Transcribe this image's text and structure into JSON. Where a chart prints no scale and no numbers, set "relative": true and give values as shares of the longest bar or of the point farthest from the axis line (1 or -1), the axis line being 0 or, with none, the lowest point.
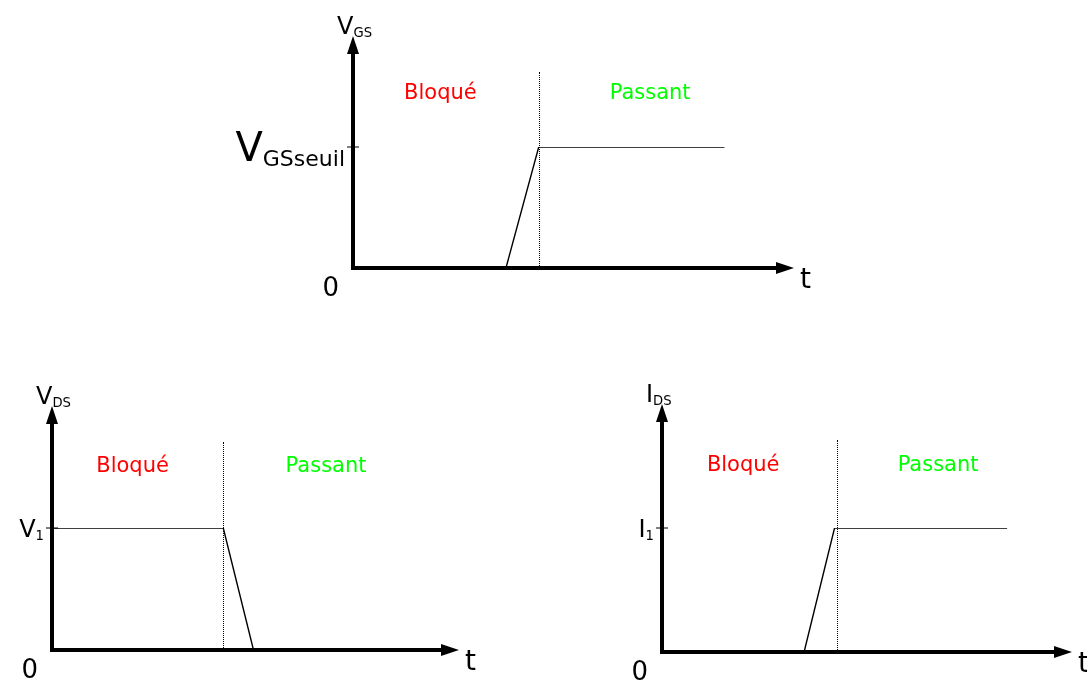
{
  "chart_data": [
    {
      "type": "line",
      "ylabel": "V$_{GS}$",
      "xlabel": "t",
      "relative": true,
      "legend": false,
      "categories": [
        null,
        null,
        null,
        null,
        null,
        null,
        null,
        null,
        null,
        null,
        null,
        null,
        null,
        null,
        null,
        null,
        null,
        null,
        null,
        null,
        null,
        null,
        null,
        null,
        null,
        null,
        null,
        null,
        null,
        null,
        null,
        null,
        null,
        null,
        null,
        null,
        null,
        null,
        null,
        null,
        null
      ],
      "series": [
        {
          "color": "#000000",
          "values": [
            0,
            null,
            null,
            null,
            null,
            null,
            null,
            null,
            null,
            null,
            null,
            null,
            null,
            null,
            0,
            null,
            null,
            1,
            null,
            null,
            null,
            null,
            null,
            null,
            null,
            null,
            null,
            null,
            null,
            null,
            null,
            null,
            null,
            null,
            1,
            null,
            null,
            null,
            null,
            null,
            null
          ]
        }
      ],
      "annotations": [
        "V$_{GSseuil}$",
        "0",
        "Bloqué",
        "Passant"
      ]
    },
    {
      "type": "line",
      "ylabel": "V$_{DS}$",
      "xlabel": "t",
      "relative": true,
      "legend": false,
      "categories": [
        null,
        null,
        null,
        null,
        null,
        null,
        null,
        null,
        null,
        null,
        null,
        null,
        null,
        null,
        null,
        null,
        null,
        null,
        null,
        null,
        null,
        null,
        null,
        null,
        null,
        null,
        null,
        null,
        null,
        null,
        null,
        null,
        null,
        null,
        null,
        null,
        null,
        null,
        null,
        null,
        null
      ],
      "series": [
        {
          "color": "#000000",
          "values": [
            1,
            null,
            null,
            null,
            null,
            null,
            null,
            null,
            null,
            null,
            null,
            null,
            null,
            null,
            null,
            null,
            null,
            1,
            null,
            null,
            0,
            null,
            null,
            null,
            null,
            null,
            null,
            null,
            null,
            null,
            null,
            null,
            null,
            null,
            null,
            null,
            null,
            0,
            null,
            null,
            null
          ]
        }
      ],
      "annotations": [
        "V$_{1}$",
        "0",
        "Bloqué",
        "Passant"
      ]
    },
    {
      "type": "line",
      "ylabel": "I$_{DS}$",
      "xlabel": "t",
      "relative": true,
      "legend": false,
      "categories": [
        null,
        null,
        null,
        null,
        null,
        null,
        null,
        null,
        null,
        null,
        null,
        null,
        null,
        null,
        null,
        null,
        null,
        null,
        null,
        null,
        null,
        null,
        null,
        null,
        null,
        null,
        null,
        null,
        null,
        null,
        null,
        null,
        null,
        null,
        null,
        null,
        null,
        null,
        null,
        null,
        null
      ],
      "series": [
        {
          "color": "#000000",
          "values": [
            0,
            null,
            null,
            null,
            null,
            null,
            null,
            null,
            null,
            null,
            null,
            null,
            null,
            null,
            0,
            null,
            null,
            1,
            null,
            null,
            null,
            null,
            null,
            null,
            null,
            null,
            null,
            null,
            null,
            null,
            null,
            null,
            null,
            null,
            1,
            null,
            null,
            null,
            null,
            null,
            null
          ]
        }
      ],
      "annotations": [
        "I$_{1}$",
        "0",
        "Bloqué",
        "Passant"
      ]
    }
  ]
}
